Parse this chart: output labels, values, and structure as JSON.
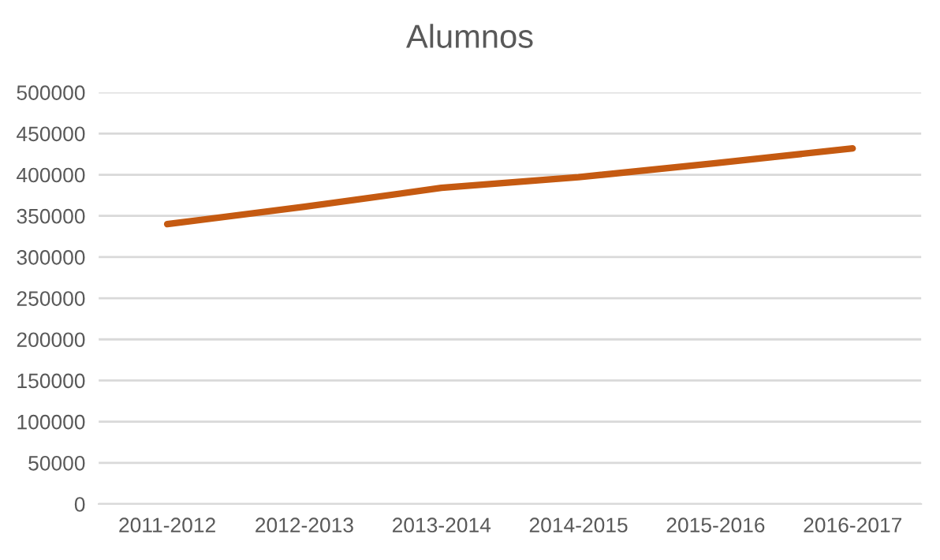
{
  "chart_data": {
    "type": "line",
    "title": "Alumnos",
    "categories": [
      "2011-2012",
      "2012-2013",
      "2013-2014",
      "2014-2015",
      "2015-2016",
      "2016-2017"
    ],
    "series": [
      {
        "color": "#c55a11",
        "values": [
          340000,
          361000,
          384000,
          397000,
          414000,
          432000
        ]
      }
    ],
    "ylim": [
      0,
      500000
    ],
    "yticks": [
      0,
      50000,
      100000,
      150000,
      200000,
      250000,
      300000,
      350000,
      400000,
      450000,
      500000
    ],
    "grid": "y",
    "marker": "none",
    "line_style": "solid"
  }
}
